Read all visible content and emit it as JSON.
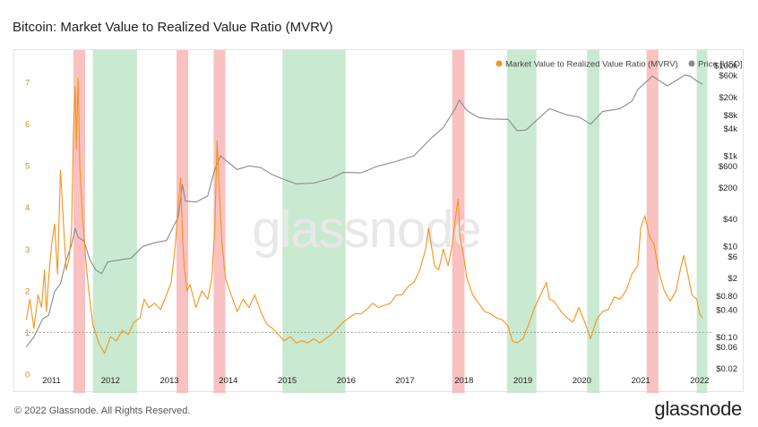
{
  "header": {
    "title": "Bitcoin: Market Value to Realized Value Ratio (MVRV)"
  },
  "footer": {
    "copyright": "© 2022 Glassnode. All Rights Reserved.",
    "logo": "glassnode"
  },
  "watermark": "glassnode",
  "colors": {
    "mvrv": "#f7931a",
    "price": "#8a8a8a",
    "red_band": "#f9b6b6",
    "green_band": "#bfe6c8",
    "baseline": "#888888"
  },
  "chart_data": {
    "type": "line",
    "title": "Bitcoin: Market Value to Realized Value Ratio (MVRV)",
    "x_range": [
      2010.6,
      2022.25
    ],
    "x_ticks": [
      "2011",
      "2012",
      "2013",
      "2014",
      "2015",
      "2016",
      "2017",
      "2018",
      "2019",
      "2020",
      "2021",
      "2022"
    ],
    "y_left": {
      "range": [
        0,
        7.6
      ],
      "ticks": [
        "0",
        "1",
        "2",
        "3",
        "4",
        "5",
        "6",
        "7"
      ]
    },
    "y_right": {
      "scale": "log",
      "range": [
        0.015,
        150000
      ],
      "ticks": [
        "$0.02",
        "$0.06",
        "$0.10",
        "$0.40",
        "$0.80",
        "$2",
        "$6",
        "$10",
        "$40",
        "$200",
        "$600",
        "$1k",
        "$4k",
        "$8k",
        "$20k",
        "$60k",
        "$100k"
      ],
      "tick_values": [
        0.02,
        0.06,
        0.1,
        0.4,
        0.8,
        2,
        6,
        10,
        40,
        200,
        600,
        1000,
        4000,
        8000,
        20000,
        60000,
        100000
      ]
    },
    "reference_line": {
      "y": 1,
      "style": "dotted"
    },
    "legend": {
      "placement": "top-right"
    },
    "bands": [
      {
        "color": "red",
        "start": 2011.42,
        "end": 2011.62
      },
      {
        "color": "green",
        "start": 2011.75,
        "end": 2012.5
      },
      {
        "color": "red",
        "start": 2013.17,
        "end": 2013.37
      },
      {
        "color": "red",
        "start": 2013.8,
        "end": 2014.0
      },
      {
        "color": "green",
        "start": 2014.97,
        "end": 2016.04
      },
      {
        "color": "red",
        "start": 2017.85,
        "end": 2018.06
      },
      {
        "color": "green",
        "start": 2018.78,
        "end": 2019.28
      },
      {
        "color": "green",
        "start": 2020.14,
        "end": 2020.35
      },
      {
        "color": "red",
        "start": 2021.15,
        "end": 2021.35
      },
      {
        "color": "green",
        "start": 2022.0,
        "end": 2022.18
      }
    ],
    "series": [
      {
        "name": "Market Value to Realized Value Ratio (MVRV)",
        "axis": "left",
        "x": [
          2010.62,
          2010.68,
          2010.75,
          2010.82,
          2010.88,
          2010.93,
          2010.96,
          2011.0,
          2011.05,
          2011.1,
          2011.15,
          2011.2,
          2011.26,
          2011.3,
          2011.35,
          2011.39,
          2011.42,
          2011.45,
          2011.47,
          2011.5,
          2011.53,
          2011.57,
          2011.62,
          2011.68,
          2011.75,
          2011.85,
          2011.95,
          2012.05,
          2012.15,
          2012.25,
          2012.35,
          2012.45,
          2012.55,
          2012.62,
          2012.7,
          2012.8,
          2012.9,
          2013.0,
          2013.08,
          2013.15,
          2013.2,
          2013.24,
          2013.27,
          2013.3,
          2013.35,
          2013.4,
          2013.5,
          2013.6,
          2013.7,
          2013.77,
          2013.82,
          2013.86,
          2013.9,
          2013.94,
          2014.0,
          2014.1,
          2014.2,
          2014.3,
          2014.4,
          2014.5,
          2014.6,
          2014.7,
          2014.8,
          2014.9,
          2015.0,
          2015.1,
          2015.2,
          2015.3,
          2015.4,
          2015.5,
          2015.6,
          2015.7,
          2015.8,
          2015.9,
          2016.0,
          2016.1,
          2016.2,
          2016.3,
          2016.4,
          2016.5,
          2016.6,
          2016.7,
          2016.8,
          2016.9,
          2017.0,
          2017.1,
          2017.2,
          2017.3,
          2017.4,
          2017.45,
          2017.55,
          2017.62,
          2017.7,
          2017.78,
          2017.85,
          2017.9,
          2017.95,
          2017.98,
          2018.05,
          2018.1,
          2018.2,
          2018.3,
          2018.4,
          2018.5,
          2018.6,
          2018.7,
          2018.8,
          2018.87,
          2018.95,
          2019.05,
          2019.15,
          2019.25,
          2019.35,
          2019.45,
          2019.5,
          2019.58,
          2019.7,
          2019.8,
          2019.9,
          2020.0,
          2020.1,
          2020.2,
          2020.3,
          2020.4,
          2020.5,
          2020.6,
          2020.7,
          2020.8,
          2020.9,
          2021.0,
          2021.05,
          2021.12,
          2021.2,
          2021.28,
          2021.35,
          2021.45,
          2021.55,
          2021.65,
          2021.72,
          2021.78,
          2021.85,
          2021.92,
          2022.0,
          2022.05,
          2022.1
        ],
        "values": [
          1.3,
          1.8,
          1.1,
          1.9,
          1.6,
          2.5,
          1.5,
          2.3,
          3.1,
          3.6,
          2.4,
          4.9,
          3.4,
          2.5,
          2.8,
          3.5,
          5.8,
          6.9,
          5.4,
          7.1,
          5.0,
          3.9,
          2.9,
          2.0,
          1.2,
          0.75,
          0.5,
          0.9,
          0.8,
          1.05,
          0.95,
          1.25,
          1.35,
          1.8,
          1.6,
          1.7,
          1.55,
          1.9,
          2.2,
          3.1,
          4.1,
          4.7,
          3.4,
          2.6,
          2.0,
          2.15,
          1.6,
          2.0,
          1.8,
          2.3,
          3.5,
          5.6,
          4.3,
          3.2,
          2.3,
          1.9,
          1.5,
          1.8,
          1.6,
          1.9,
          1.5,
          1.2,
          1.1,
          0.95,
          0.8,
          0.9,
          0.75,
          0.8,
          0.75,
          0.85,
          0.75,
          0.85,
          0.95,
          1.1,
          1.25,
          1.35,
          1.45,
          1.45,
          1.55,
          1.7,
          1.6,
          1.65,
          1.7,
          1.9,
          1.9,
          2.1,
          2.2,
          2.5,
          3.0,
          3.5,
          2.6,
          2.5,
          3.0,
          2.6,
          3.1,
          3.7,
          4.2,
          3.3,
          2.8,
          2.3,
          1.9,
          1.7,
          1.5,
          1.45,
          1.35,
          1.3,
          1.15,
          0.8,
          0.75,
          0.85,
          1.2,
          1.6,
          1.9,
          2.2,
          1.8,
          1.75,
          1.5,
          1.35,
          1.25,
          1.6,
          1.25,
          0.85,
          1.3,
          1.5,
          1.55,
          1.85,
          1.8,
          2.0,
          2.4,
          2.6,
          3.5,
          3.8,
          3.3,
          3.1,
          2.5,
          2.0,
          1.75,
          2.0,
          2.5,
          2.85,
          2.4,
          1.9,
          1.8,
          1.45,
          1.35
        ]
      },
      {
        "name": "Price [USD]",
        "axis": "right",
        "x": [
          2010.62,
          2010.75,
          2010.9,
          2011.0,
          2011.1,
          2011.2,
          2011.3,
          2011.38,
          2011.45,
          2011.5,
          2011.6,
          2011.7,
          2011.8,
          2011.9,
          2012.0,
          2012.2,
          2012.4,
          2012.6,
          2012.8,
          2013.0,
          2013.2,
          2013.27,
          2013.32,
          2013.5,
          2013.7,
          2013.82,
          2013.92,
          2014.0,
          2014.2,
          2014.4,
          2014.6,
          2014.8,
          2015.0,
          2015.2,
          2015.5,
          2015.8,
          2016.0,
          2016.3,
          2016.6,
          2016.9,
          2017.2,
          2017.5,
          2017.7,
          2017.9,
          2017.97,
          2018.1,
          2018.3,
          2018.5,
          2018.8,
          2018.95,
          2019.1,
          2019.5,
          2019.8,
          2020.0,
          2020.2,
          2020.4,
          2020.7,
          2020.9,
          2021.0,
          2021.25,
          2021.5,
          2021.8,
          2021.9,
          2022.0,
          2022.1
        ],
        "values": [
          0.06,
          0.1,
          0.25,
          0.3,
          1.0,
          1.5,
          5.0,
          10.0,
          25.0,
          16.0,
          13.0,
          5.0,
          3.0,
          2.5,
          4.5,
          5.0,
          5.5,
          10.0,
          12.0,
          13.5,
          45.0,
          230.0,
          100.0,
          95.0,
          130.0,
          500.0,
          1000.0,
          800.0,
          500.0,
          600.0,
          550.0,
          380.0,
          300.0,
          240.0,
          250.0,
          320.0,
          430.0,
          420.0,
          600.0,
          750.0,
          1000.0,
          2500.0,
          4200.0,
          11000.0,
          17000.0,
          10000.0,
          7000.0,
          6500.0,
          6400.0,
          3600.0,
          3700.0,
          11000.0,
          8000.0,
          7200.0,
          5000.0,
          9500.0,
          11000.0,
          16000.0,
          29000.0,
          58000.0,
          35000.0,
          61000.0,
          57000.0,
          45000.0,
          38000.0
        ]
      }
    ]
  }
}
